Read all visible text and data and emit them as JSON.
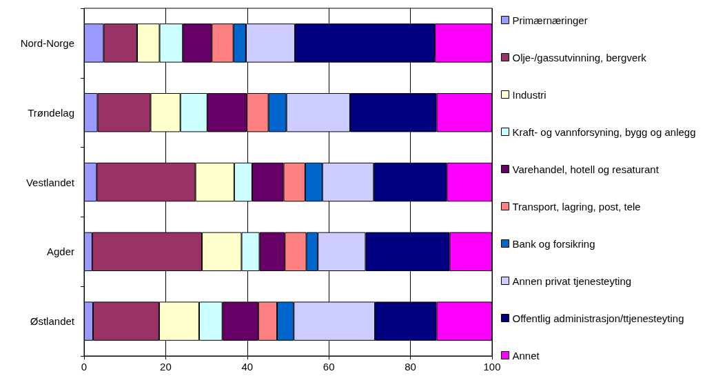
{
  "chart_data": {
    "type": "bar",
    "orientation": "horizontal",
    "stacked": true,
    "categories": [
      "Nord-Norge",
      "Trøndelag",
      "Vestlandet",
      "Agder",
      "Østlandet"
    ],
    "series": [
      {
        "name": "Primærnæringer",
        "color": "#9999ff",
        "values": [
          4.8,
          3.3,
          3.1,
          2.0,
          2.2
        ]
      },
      {
        "name": "Olje-/gassutvinning, bergverk",
        "color": "#993366",
        "values": [
          8.2,
          13.0,
          24.2,
          26.9,
          16.2
        ]
      },
      {
        "name": "Industri",
        "color": "#ffffcc",
        "values": [
          5.5,
          7.3,
          9.5,
          9.7,
          9.8
        ]
      },
      {
        "name": "Kraft- og vannforsyning, bygg og anlegg",
        "color": "#ccffff",
        "values": [
          5.7,
          6.6,
          4.4,
          4.4,
          5.7
        ]
      },
      {
        "name": "Varehandel, hotell og resaturant",
        "color": "#660066",
        "values": [
          7.1,
          9.7,
          7.7,
          6.2,
          8.8
        ]
      },
      {
        "name": "Transport, lagring, post, tele",
        "color": "#ff8080",
        "values": [
          5.3,
          5.3,
          5.3,
          5.3,
          4.6
        ]
      },
      {
        "name": "Bank og forsikring",
        "color": "#0066cc",
        "values": [
          3.1,
          4.4,
          4.2,
          2.8,
          4.1
        ]
      },
      {
        "name": "Annen privat tjenesteyting",
        "color": "#ccccff",
        "values": [
          12.0,
          15.6,
          12.6,
          11.7,
          19.9
        ]
      },
      {
        "name": "Offentlig administrasjon/ttjenesteyting",
        "color": "#000080",
        "values": [
          34.3,
          21.2,
          17.9,
          20.6,
          15.1
        ]
      },
      {
        "name": "Annet",
        "color": "#ff00ff",
        "values": [
          14.0,
          13.6,
          11.1,
          10.4,
          13.6
        ]
      }
    ],
    "xlim": [
      0,
      100
    ],
    "xticks": [
      0,
      20,
      40,
      60,
      80,
      100
    ],
    "grid": "x",
    "legend": "right"
  }
}
